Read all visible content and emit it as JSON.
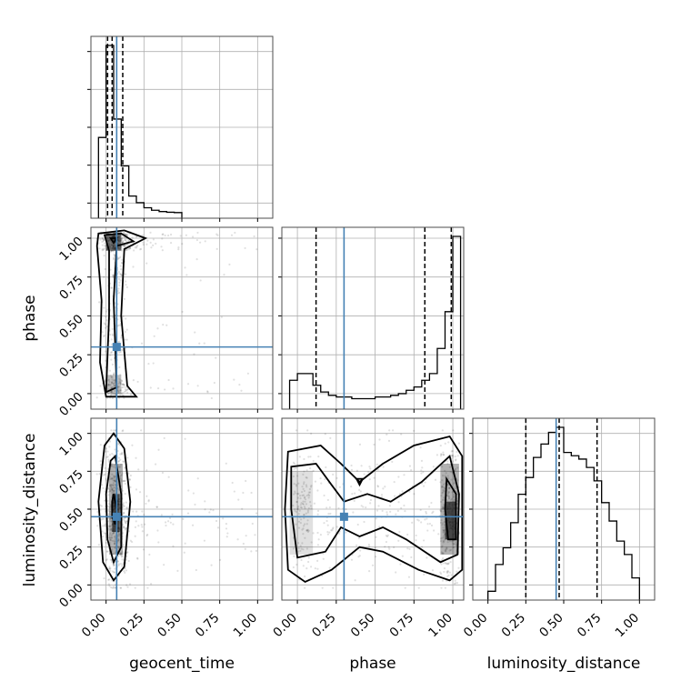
{
  "chart_data": {
    "type": "corner",
    "parameters": [
      "geocent_time",
      "phase",
      "luminosity_distance"
    ],
    "axis_labels": {
      "x": [
        "geocent_time",
        "phase",
        "luminosity_distance"
      ],
      "y": [
        "phase",
        "luminosity_distance"
      ]
    },
    "tick_values": [
      0.0,
      0.25,
      0.5,
      0.75,
      1.0
    ],
    "tick_labels": [
      "0.00",
      "0.25",
      "0.50",
      "0.75",
      "1.00"
    ],
    "ranges": {
      "geocent_time": [
        -0.1,
        1.1
      ],
      "phase": [
        -0.1,
        1.07
      ],
      "luminosity_distance": [
        -0.1,
        1.1
      ]
    },
    "truths": {
      "geocent_time": 0.07,
      "phase": 0.3,
      "luminosity_distance": 0.45
    },
    "quantiles": {
      "geocent_time": [
        0.01,
        0.04,
        0.11
      ],
      "phase": [
        0.12,
        0.82,
        0.99
      ],
      "luminosity_distance": [
        0.25,
        0.47,
        0.72
      ]
    },
    "histograms": {
      "geocent_time": {
        "bins": [
          -0.05,
          0.0,
          0.05,
          0.1,
          0.15,
          0.2,
          0.25,
          0.3,
          0.35,
          0.4,
          0.45,
          0.5
        ],
        "counts": [
          0.45,
          1.0,
          0.56,
          0.28,
          0.1,
          0.06,
          0.03,
          0.015,
          0.007,
          0.003,
          0.001
        ]
      },
      "phase": {
        "bins": [
          -0.05,
          0.0,
          0.05,
          0.1,
          0.15,
          0.2,
          0.25,
          0.3,
          0.35,
          0.4,
          0.45,
          0.5,
          0.55,
          0.6,
          0.65,
          0.7,
          0.75,
          0.8,
          0.85,
          0.9,
          0.95,
          1.0,
          1.05
        ],
        "counts": [
          0.14,
          0.18,
          0.18,
          0.11,
          0.07,
          0.05,
          0.04,
          0.04,
          0.03,
          0.03,
          0.03,
          0.04,
          0.04,
          0.05,
          0.06,
          0.08,
          0.1,
          0.14,
          0.18,
          0.33,
          0.55,
          1.0
        ]
      },
      "luminosity_distance": {
        "bins": [
          0.0,
          0.05,
          0.1,
          0.15,
          0.2,
          0.25,
          0.3,
          0.35,
          0.4,
          0.45,
          0.5,
          0.55,
          0.6,
          0.65,
          0.7,
          0.75,
          0.8,
          0.85,
          0.9,
          0.95,
          1.0
        ],
        "counts": [
          0.02,
          0.18,
          0.28,
          0.43,
          0.6,
          0.7,
          0.82,
          0.9,
          0.97,
          1.0,
          0.85,
          0.83,
          0.81,
          0.76,
          0.68,
          0.55,
          0.44,
          0.32,
          0.24,
          0.1
        ]
      }
    },
    "grid": true
  }
}
